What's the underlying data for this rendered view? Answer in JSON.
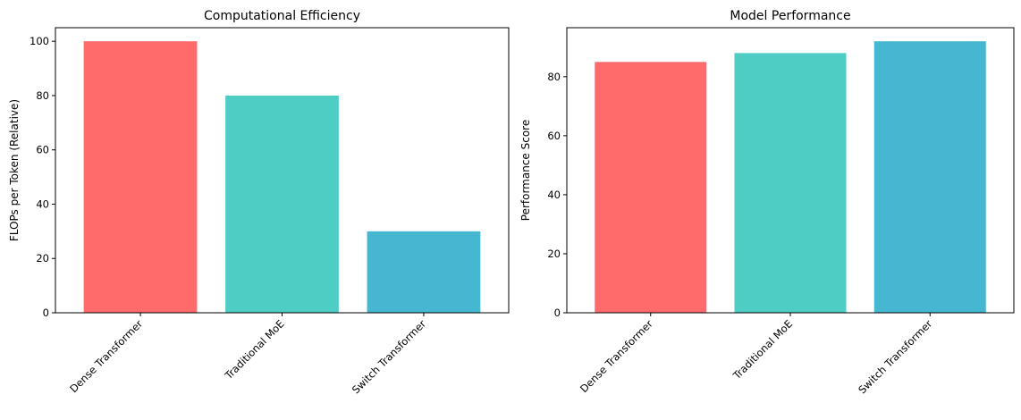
{
  "chart_data": [
    {
      "type": "bar",
      "title": "Computational Efficiency",
      "xlabel": "",
      "ylabel": "FLOPs per Token (Relative)",
      "categories": [
        "Dense Transformer",
        "Traditional MoE",
        "Switch Transformer"
      ],
      "values": [
        100,
        80,
        30
      ],
      "colors": [
        "#FF6B6B",
        "#4ECDC4",
        "#45B7D1"
      ],
      "ylim": [
        0,
        105
      ],
      "yticks": [
        0,
        20,
        40,
        60,
        80,
        100
      ],
      "grid": false,
      "xtick_rotation": 45
    },
    {
      "type": "bar",
      "title": "Model Performance",
      "xlabel": "",
      "ylabel": "Performance Score",
      "categories": [
        "Dense Transformer",
        "Traditional MoE",
        "Switch Transformer"
      ],
      "values": [
        85,
        88,
        92
      ],
      "colors": [
        "#FF6B6B",
        "#4ECDC4",
        "#45B7D1"
      ],
      "ylim": [
        0,
        96.6
      ],
      "yticks": [
        0,
        20,
        40,
        60,
        80
      ],
      "grid": false,
      "xtick_rotation": 45
    }
  ]
}
